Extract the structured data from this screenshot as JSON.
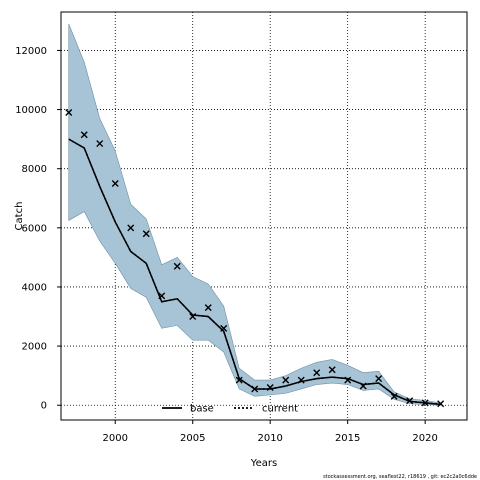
{
  "chart_data": {
    "type": "line",
    "xlabel": "Years",
    "ylabel": "Catch",
    "xlim": [
      1996.5,
      2022.7
    ],
    "ylim": [
      -500,
      13300
    ],
    "xticks": [
      2000,
      2005,
      2010,
      2015,
      2020
    ],
    "yticks": [
      0,
      2000,
      4000,
      6000,
      8000,
      10000,
      12000
    ],
    "grid": true,
    "legend_position": "bottom-center",
    "colors": {
      "band": "#a6c4d6",
      "band_edge": "#6f8fa4",
      "line": "#000000"
    },
    "x": [
      1997,
      1998,
      1999,
      2000,
      2001,
      2002,
      2003,
      2004,
      2005,
      2006,
      2007,
      2008,
      2009,
      2010,
      2011,
      2012,
      2013,
      2014,
      2015,
      2016,
      2017,
      2018,
      2019,
      2020,
      2021
    ],
    "series": [
      {
        "name": "base",
        "style": "solid",
        "values": [
          9000,
          8700,
          7400,
          6200,
          5200,
          4800,
          3500,
          3600,
          3050,
          3000,
          2500,
          900,
          550,
          550,
          650,
          800,
          900,
          950,
          900,
          700,
          750,
          350,
          130,
          80,
          30
        ]
      },
      {
        "name": "current",
        "style": "dotted",
        "values": [
          9000,
          8700,
          7400,
          6200,
          5200,
          4800,
          3500,
          3600,
          3050,
          3000,
          2500,
          900,
          550,
          550,
          650,
          800,
          900,
          950,
          900,
          700,
          750,
          350,
          130,
          80,
          30
        ]
      }
    ],
    "band": {
      "lower": [
        6250,
        6550,
        5550,
        4800,
        3950,
        3650,
        2600,
        2700,
        2200,
        2200,
        1800,
        550,
        300,
        350,
        400,
        550,
        700,
        750,
        700,
        500,
        550,
        200,
        50,
        20,
        0
      ],
      "upper": [
        12900,
        11600,
        9700,
        8600,
        6800,
        6300,
        4750,
        5000,
        4350,
        4100,
        3350,
        1250,
        850,
        850,
        1000,
        1250,
        1450,
        1550,
        1350,
        1100,
        1150,
        450,
        220,
        160,
        80
      ]
    },
    "observations": {
      "x": [
        1997,
        1998,
        1999,
        2000,
        2001,
        2002,
        2003,
        2004,
        2005,
        2006,
        2007,
        2008,
        2009,
        2010,
        2011,
        2012,
        2013,
        2014,
        2015,
        2016,
        2017,
        2018,
        2019,
        2020,
        2021
      ],
      "y": [
        9900,
        9150,
        8850,
        7500,
        6000,
        5800,
        3700,
        4700,
        3000,
        3300,
        2600,
        850,
        550,
        600,
        850,
        850,
        1100,
        1200,
        850,
        650,
        900,
        300,
        150,
        80,
        50
      ]
    }
  },
  "footnote": "stockassessment.org, seaflest22, r18619 , git: ec2c2a0c6dde"
}
